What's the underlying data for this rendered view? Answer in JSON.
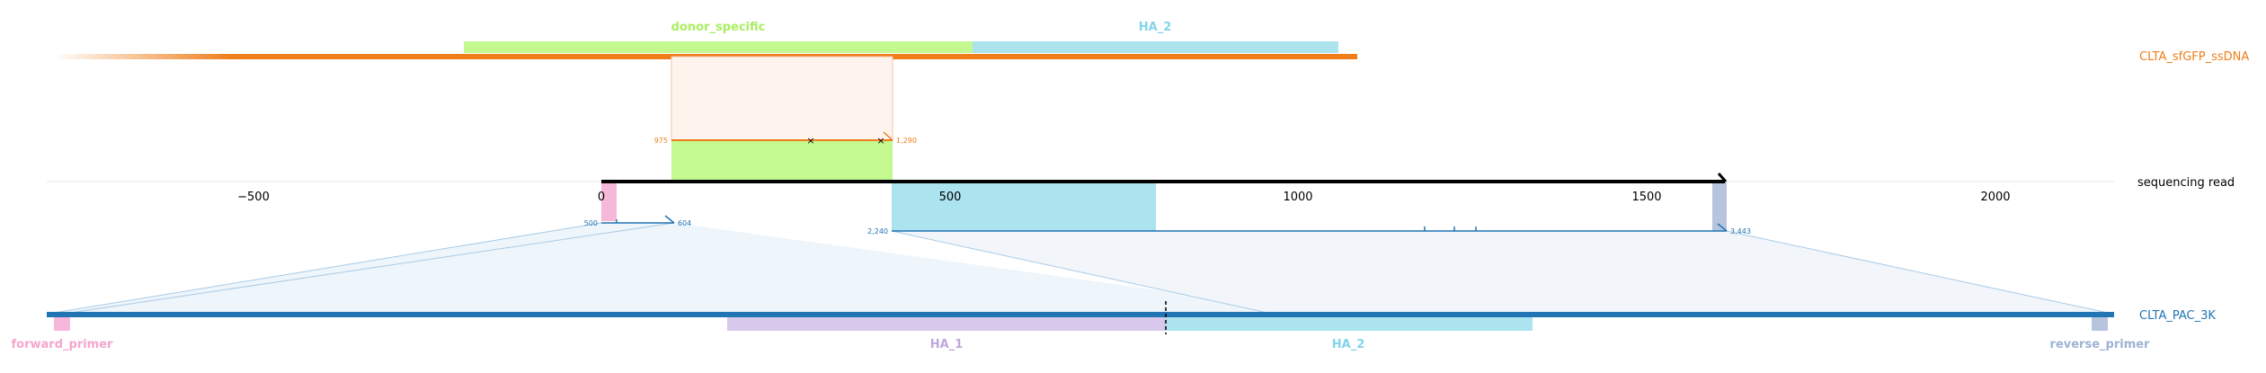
{
  "colors": {
    "donor": "#ee7d1a",
    "read": "#000000",
    "ref": "#2175b3",
    "donor_specific": "#c3f98f",
    "donor_specific_text": "#a9ef62",
    "ha2": "#abe3ef",
    "ha2_text": "#82d4ea",
    "ha1": "#d7c8ec",
    "ha1_text": "#bea6de",
    "forward_primer": "#f5b8d8",
    "forward_primer_text": "#f4a6cb",
    "reverse_primer": "#b7c4dd",
    "reverse_primer_text": "#9eb2d4",
    "fill_top": "#fff3ee",
    "fill_bottom": "#eef5fb"
  },
  "labels": {
    "donor_specific": "donor_specific",
    "ha2_top": "HA_2",
    "ha1_bottom": "HA_1",
    "ha2_bottom": "HA_2",
    "forward_primer": "forward_primer",
    "reverse_primer": "reverse_primer"
  },
  "tracks": {
    "donor": "CLTA_sfGFP_ssDNA",
    "read": "sequencing read",
    "reference": "CLTA_PAC_3K"
  },
  "axis_ticks": [
    "−500",
    "0",
    "500",
    "1000",
    "1500",
    "2000"
  ],
  "alignment_top": {
    "start": "975",
    "end": "1,290"
  },
  "alignment_left": {
    "start": "500",
    "end": "604"
  },
  "alignment_right": {
    "start": "2,240",
    "end": "3,443"
  }
}
